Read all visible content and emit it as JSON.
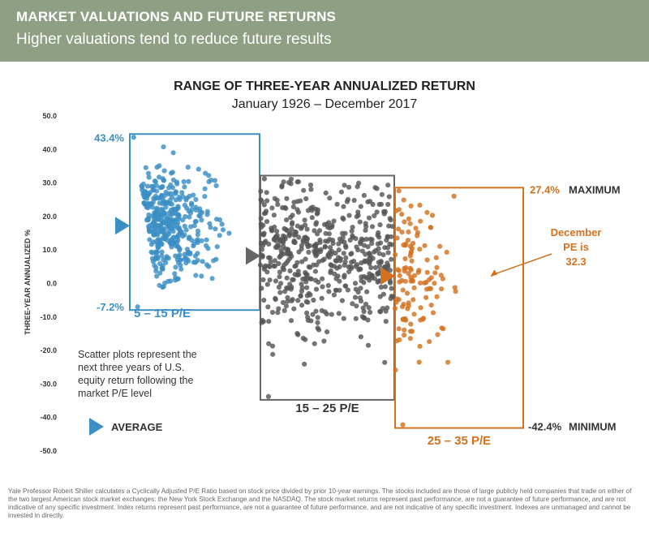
{
  "header": {
    "title": "MARKET VALUATIONS AND FUTURE RETURNS",
    "subtitle": "Higher valuations tend to reduce future results"
  },
  "colors": {
    "header_bg": "#8f9f84",
    "blue": "#3a8fc4",
    "gray": "#555555",
    "orange": "#d2711e",
    "axis_text": "#333333"
  },
  "chart_data": {
    "type": "scatter",
    "title": "RANGE OF THREE-YEAR ANNUALIZED RETURN",
    "subtitle": "January 1926 – December 2017",
    "ylabel": "THREE-YEAR ANNUALIZED %",
    "ylim": [
      -50,
      50
    ],
    "yticks": [
      "50.0",
      "40.0",
      "30.0",
      "20.0",
      "10.0",
      "0.0",
      "-10.0",
      "-20.0",
      "-30.0",
      "-40.0",
      "-50.0"
    ],
    "legend_label": "AVERAGE",
    "note": "Scatter plots represent the next three years of U.S. equity return following the market P/E level",
    "series": [
      {
        "name": "5 – 15 P/E",
        "pe_range": [
          5,
          15
        ],
        "max": 43.4,
        "min": -7.2,
        "average": 17,
        "max_label": "43.4%",
        "min_label": "-7.2%",
        "color_key": "blue",
        "count": 400
      },
      {
        "name": "15 – 25 P/E",
        "pe_range": [
          15,
          25
        ],
        "max": 31,
        "min": -34,
        "average": 8,
        "max_label": "",
        "min_label": "",
        "color_key": "gray",
        "count": 550
      },
      {
        "name": "25 – 35 P/E",
        "pe_range": [
          25,
          35
        ],
        "max": 27.4,
        "min": -42.4,
        "average": 2,
        "max_label": "27.4%",
        "max_text": "MAXIMUM",
        "min_label": "-42.4%",
        "min_text": "MINIMUM",
        "color_key": "orange",
        "count": 120
      }
    ],
    "annotation": {
      "text_lines": [
        "December",
        "PE is",
        "32.3"
      ],
      "pe": 32.3,
      "value": 1.5
    }
  },
  "footer": "Yale Professor Robert Shiller calculates a Cyclically Adjusted P/E Ratio based on stock price divided by prior 10-year earnings. The stocks included are those of large publicly held companies that trade on either of the two largest American stock market exchanges: the New York Stock Exchange and the NASDAQ. The stock market returns represent past performance, are not a guarantee of future performance, and are not indicative of any specific investment. Index returns represent past performance, are not a guarantee of future performance, and are not indicative of any specific investment. Indexes are unmanaged and cannot be invested in directly."
}
